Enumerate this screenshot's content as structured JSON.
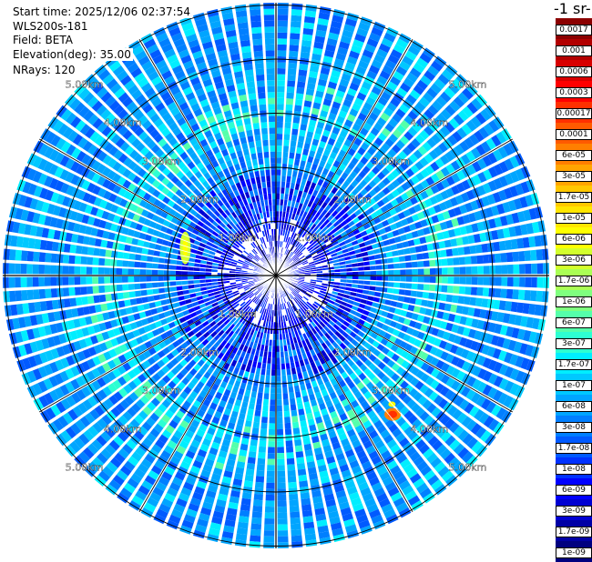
{
  "header": {
    "start_time": "Start time: 2025/12/06 02:37:54",
    "instrument": "WLS200s-181",
    "field": "Field: BETA",
    "elevation": "Elevation(deg): 35.00",
    "nrays": "NRays: 120"
  },
  "unit_label": "-1 sr-",
  "colorbar": {
    "labels": [
      "0.0017",
      "0.001",
      "0.0006",
      "0.0003",
      "0.00017",
      "0.0001",
      "6e-05",
      "3e-05",
      "1.7e-05",
      "1e-05",
      "6e-06",
      "3e-06",
      "1.7e-06",
      "1e-06",
      "6e-07",
      "3e-07",
      "1.7e-07",
      "1e-07",
      "6e-08",
      "3e-08",
      "1.7e-08",
      "1e-08",
      "6e-09",
      "3e-09",
      "1.7e-09",
      "1e-09"
    ],
    "colors": [
      "#8b0000",
      "#b20000",
      "#d80000",
      "#ff0000",
      "#ff3000",
      "#ff5a00",
      "#ff7f00",
      "#ffa500",
      "#ffc800",
      "#ffe600",
      "#fdff00",
      "#d2ff2d",
      "#aaff55",
      "#7fff7f",
      "#55ffaa",
      "#2dffd2",
      "#00eeff",
      "#00c8ff",
      "#00a5ff",
      "#007fff",
      "#005aff",
      "#0032ff",
      "#0000ff",
      "#0000d2",
      "#0000a5",
      "#00007f"
    ]
  },
  "range_rings": [
    "1.00km",
    "2.00km",
    "3.00km",
    "4.00km",
    "5.00km"
  ],
  "chart_data": {
    "type": "polar-ppi",
    "field": "BETA",
    "nrays": 120,
    "elevation_deg": 35.0,
    "range_labels_km": [
      1,
      2,
      3,
      4,
      5
    ],
    "max_range_km": 5.6
  }
}
